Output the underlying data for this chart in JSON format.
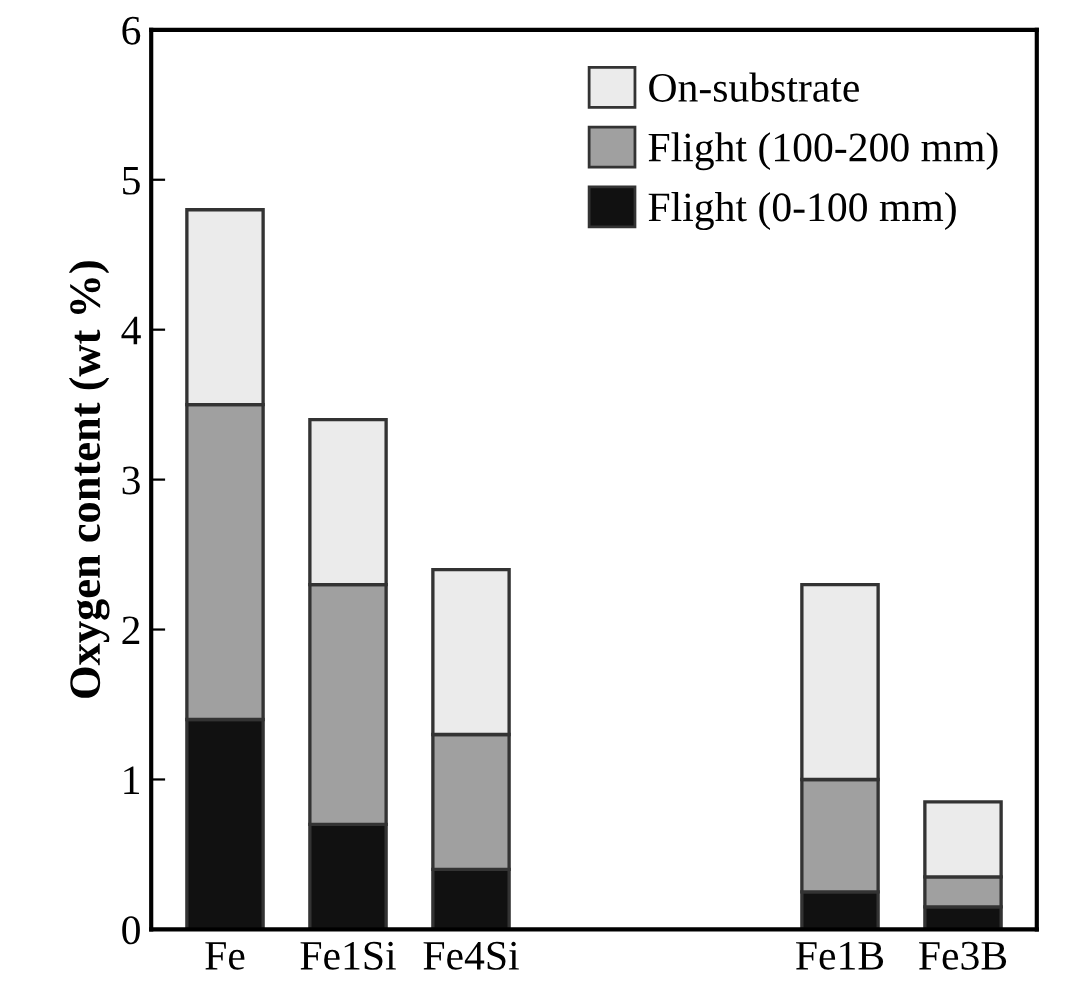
{
  "chart_data": {
    "type": "bar",
    "stacked": true,
    "ylabel": "Oxygen content (wt %)",
    "categories": [
      "Fe",
      "Fe1Si",
      "Fe4Si",
      null,
      null,
      "Fe1B",
      "Fe3B"
    ],
    "series": [
      {
        "name": "Flight (0-100 mm)",
        "color": "#111111",
        "values": [
          1.4,
          0.7,
          0.4,
          null,
          null,
          0.25,
          0.15
        ]
      },
      {
        "name": "Flight (100-200 mm)",
        "color": "#a0a0a0",
        "values": [
          2.1,
          1.6,
          0.9,
          null,
          null,
          0.75,
          0.2
        ]
      },
      {
        "name": "On-substrate",
        "color": "#ebebeb",
        "values": [
          1.3,
          1.1,
          1.1,
          null,
          null,
          1.3,
          0.5
        ]
      }
    ],
    "ylim": [
      0,
      6
    ],
    "yticks": [
      0,
      1,
      2,
      3,
      4,
      5,
      6
    ],
    "grid": false,
    "legend": "top right"
  }
}
